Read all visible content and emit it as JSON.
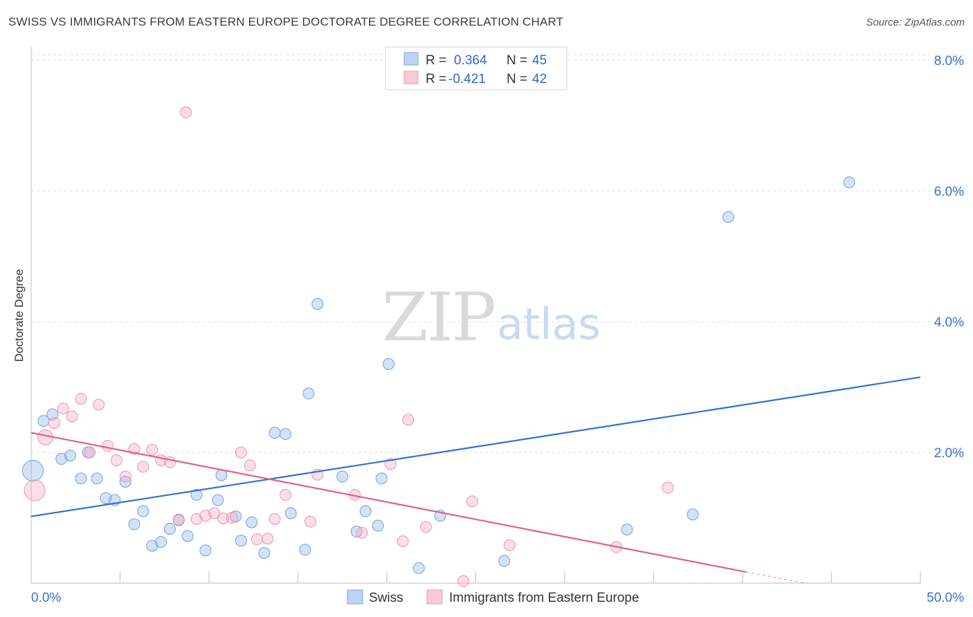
{
  "title": "SWISS VS IMMIGRANTS FROM EASTERN EUROPE DOCTORATE DEGREE CORRELATION CHART",
  "source": "Source: ZipAtlas.com",
  "watermark": {
    "part1": "ZIP",
    "part2": "atlas"
  },
  "chart_data": {
    "type": "scatter",
    "title": "SWISS VS IMMIGRANTS FROM EASTERN EUROPE DOCTORATE DEGREE CORRELATION CHART",
    "xlabel": "",
    "ylabel": "Doctorate Degree",
    "xlim": [
      0,
      50
    ],
    "ylim": [
      0,
      8.2
    ],
    "x_tick_labels": [
      "0.0%",
      "50.0%"
    ],
    "y_ticks": [
      {
        "value": 2,
        "label": "2.0%"
      },
      {
        "value": 4,
        "label": "4.0%"
      },
      {
        "value": 6,
        "label": "6.0%"
      },
      {
        "value": 8,
        "label": "8.0%"
      }
    ],
    "grid": "horizontal dashed",
    "legend_position": "top-center",
    "stats_legend": [
      {
        "r_label": "R =",
        "r_value": "0.364",
        "n_label": "N =",
        "n_value": "45"
      },
      {
        "r_label": "R =",
        "r_value": "-0.421",
        "n_label": "N =",
        "n_value": "42"
      }
    ],
    "series": [
      {
        "name": "Swiss",
        "color": "#8fb4e8",
        "line_color": "#2e72d2",
        "trend": {
          "x": [
            0,
            50
          ],
          "y": [
            1.02,
            3.15
          ]
        },
        "points": [
          {
            "x": 0.1,
            "y": 1.72,
            "s": "xl"
          },
          {
            "x": 0.7,
            "y": 2.48
          },
          {
            "x": 1.2,
            "y": 2.58
          },
          {
            "x": 1.7,
            "y": 1.9
          },
          {
            "x": 2.2,
            "y": 1.95
          },
          {
            "x": 2.8,
            "y": 1.6
          },
          {
            "x": 3.2,
            "y": 2.0
          },
          {
            "x": 3.7,
            "y": 1.6
          },
          {
            "x": 4.2,
            "y": 1.3
          },
          {
            "x": 4.7,
            "y": 1.27
          },
          {
            "x": 5.3,
            "y": 1.55
          },
          {
            "x": 5.8,
            "y": 0.9
          },
          {
            "x": 6.3,
            "y": 1.1
          },
          {
            "x": 6.8,
            "y": 0.57
          },
          {
            "x": 7.3,
            "y": 0.63
          },
          {
            "x": 7.8,
            "y": 0.83
          },
          {
            "x": 8.3,
            "y": 0.97
          },
          {
            "x": 8.8,
            "y": 0.72
          },
          {
            "x": 9.3,
            "y": 1.35
          },
          {
            "x": 9.8,
            "y": 0.5
          },
          {
            "x": 10.5,
            "y": 1.27
          },
          {
            "x": 10.7,
            "y": 1.65
          },
          {
            "x": 11.5,
            "y": 1.02
          },
          {
            "x": 11.8,
            "y": 0.65
          },
          {
            "x": 12.4,
            "y": 0.93
          },
          {
            "x": 13.1,
            "y": 0.46
          },
          {
            "x": 13.7,
            "y": 2.3
          },
          {
            "x": 14.3,
            "y": 2.28
          },
          {
            "x": 14.6,
            "y": 1.07
          },
          {
            "x": 15.4,
            "y": 0.51
          },
          {
            "x": 15.6,
            "y": 2.9
          },
          {
            "x": 16.1,
            "y": 4.27
          },
          {
            "x": 17.5,
            "y": 1.63
          },
          {
            "x": 18.3,
            "y": 0.79
          },
          {
            "x": 18.8,
            "y": 1.1
          },
          {
            "x": 19.5,
            "y": 0.88
          },
          {
            "x": 19.7,
            "y": 1.6
          },
          {
            "x": 20.1,
            "y": 3.35
          },
          {
            "x": 21.8,
            "y": 0.23
          },
          {
            "x": 23.0,
            "y": 1.03
          },
          {
            "x": 26.6,
            "y": 0.34
          },
          {
            "x": 33.5,
            "y": 0.82
          },
          {
            "x": 37.2,
            "y": 1.05
          },
          {
            "x": 39.2,
            "y": 5.6
          },
          {
            "x": 46.0,
            "y": 6.13
          }
        ]
      },
      {
        "name": "Immigrants from Eastern Europe",
        "color": "#f4a8c0",
        "line_color": "#e0608b",
        "trend": {
          "x": [
            0,
            40.2
          ],
          "y": [
            2.3,
            0.17
          ]
        },
        "trend_dashed": {
          "x": [
            40.2,
            43.5
          ],
          "y": [
            0.17,
            0.0
          ]
        },
        "points": [
          {
            "x": 0.2,
            "y": 1.42,
            "s": "xl"
          },
          {
            "x": 0.8,
            "y": 2.23,
            "s": "l"
          },
          {
            "x": 1.3,
            "y": 2.45
          },
          {
            "x": 1.8,
            "y": 2.67
          },
          {
            "x": 2.3,
            "y": 2.55
          },
          {
            "x": 2.8,
            "y": 2.82
          },
          {
            "x": 3.3,
            "y": 2.0
          },
          {
            "x": 3.8,
            "y": 2.73
          },
          {
            "x": 4.3,
            "y": 2.1
          },
          {
            "x": 4.8,
            "y": 1.88
          },
          {
            "x": 5.3,
            "y": 1.63
          },
          {
            "x": 5.8,
            "y": 2.05
          },
          {
            "x": 6.3,
            "y": 1.78
          },
          {
            "x": 6.8,
            "y": 2.04
          },
          {
            "x": 7.3,
            "y": 1.88
          },
          {
            "x": 7.8,
            "y": 1.85
          },
          {
            "x": 8.3,
            "y": 0.96
          },
          {
            "x": 8.7,
            "y": 7.2
          },
          {
            "x": 9.3,
            "y": 0.98
          },
          {
            "x": 9.8,
            "y": 1.03
          },
          {
            "x": 10.3,
            "y": 1.07
          },
          {
            "x": 10.8,
            "y": 0.99
          },
          {
            "x": 11.3,
            "y": 1.0
          },
          {
            "x": 11.8,
            "y": 2.0
          },
          {
            "x": 12.3,
            "y": 1.8
          },
          {
            "x": 12.7,
            "y": 0.67
          },
          {
            "x": 13.3,
            "y": 0.68
          },
          {
            "x": 13.7,
            "y": 0.98
          },
          {
            "x": 14.3,
            "y": 1.35
          },
          {
            "x": 15.7,
            "y": 0.94
          },
          {
            "x": 16.1,
            "y": 1.66
          },
          {
            "x": 18.2,
            "y": 1.35
          },
          {
            "x": 18.6,
            "y": 0.77
          },
          {
            "x": 20.2,
            "y": 1.82
          },
          {
            "x": 20.9,
            "y": 0.64
          },
          {
            "x": 21.2,
            "y": 2.5
          },
          {
            "x": 22.2,
            "y": 0.86
          },
          {
            "x": 24.3,
            "y": 0.03
          },
          {
            "x": 24.8,
            "y": 1.25
          },
          {
            "x": 26.9,
            "y": 0.58
          },
          {
            "x": 32.9,
            "y": 0.55
          },
          {
            "x": 35.8,
            "y": 1.46
          }
        ]
      }
    ]
  }
}
